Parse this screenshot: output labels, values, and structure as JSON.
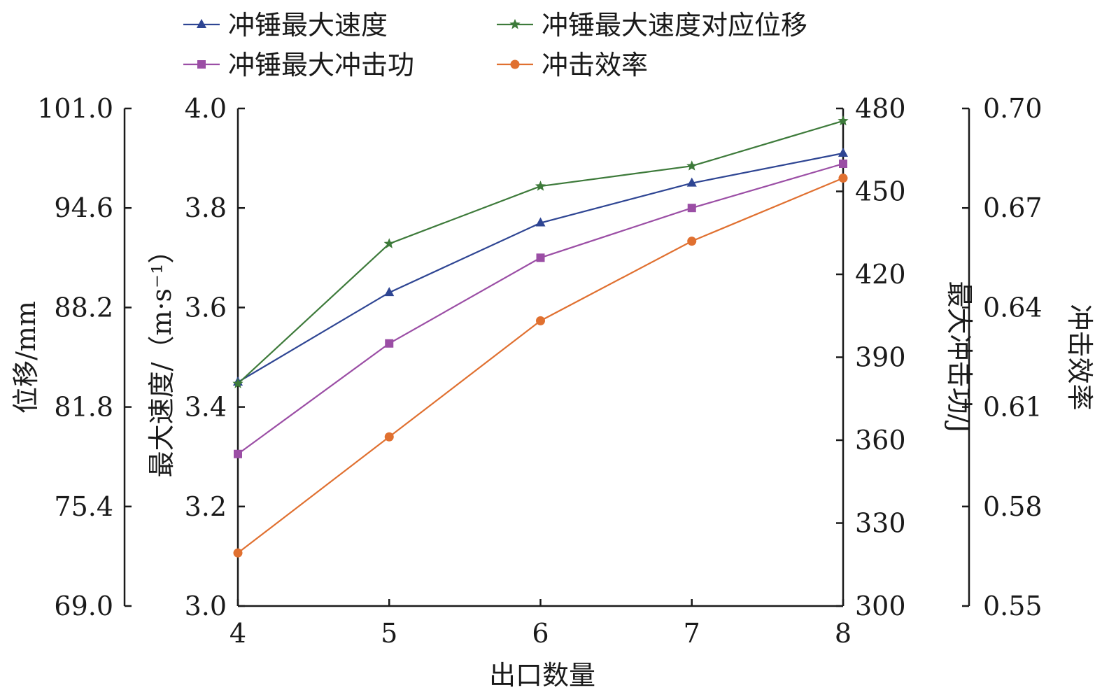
{
  "chart_data": {
    "type": "line",
    "xlabel": "出口数量",
    "x": [
      4,
      5,
      6,
      7,
      8
    ],
    "x_ticks": [
      "4",
      "5",
      "6",
      "7",
      "8"
    ],
    "xlim": [
      4,
      8
    ],
    "axes": [
      {
        "id": "disp",
        "label": "位移/mm",
        "ylim": [
          69.0,
          101.0
        ],
        "ticks": [
          "69.0",
          "75.4",
          "81.8",
          "88.2",
          "94.6",
          "101.0"
        ]
      },
      {
        "id": "vel",
        "label": "最大速度/（m·s⁻¹）",
        "ylim": [
          3.0,
          4.0
        ],
        "ticks": [
          "3.0",
          "3.2",
          "3.4",
          "3.6",
          "3.8",
          "4.0"
        ]
      },
      {
        "id": "energy",
        "label": "最大冲击功/J",
        "ylim": [
          300,
          480
        ],
        "ticks": [
          "300",
          "330",
          "360",
          "390",
          "420",
          "450",
          "480"
        ]
      },
      {
        "id": "eff",
        "label": "冲击效率",
        "ylim": [
          0.55,
          0.7
        ],
        "ticks": [
          "0.55",
          "0.58",
          "0.61",
          "0.64",
          "0.67",
          "0.70"
        ]
      }
    ],
    "series": [
      {
        "name": "冲锤最大速度",
        "axis": "vel",
        "color": "#2e4593",
        "marker": "triangle",
        "values": [
          3.45,
          3.63,
          3.77,
          3.85,
          3.91
        ]
      },
      {
        "name": "冲锤最大速度对应位移",
        "axis": "disp",
        "color": "#3d7a3a",
        "marker": "star",
        "values": [
          83.3,
          92.3,
          96.0,
          97.3,
          100.2
        ]
      },
      {
        "name": "冲锤最大冲击功",
        "axis": "energy",
        "color": "#9b4ea5",
        "marker": "square",
        "values": [
          355,
          395,
          426,
          444,
          460
        ]
      },
      {
        "name": "冲击效率",
        "axis": "eff",
        "color": "#e07030",
        "marker": "circle",
        "values": [
          0.566,
          0.601,
          0.636,
          0.66,
          0.679
        ]
      }
    ],
    "legend_position": "top"
  }
}
